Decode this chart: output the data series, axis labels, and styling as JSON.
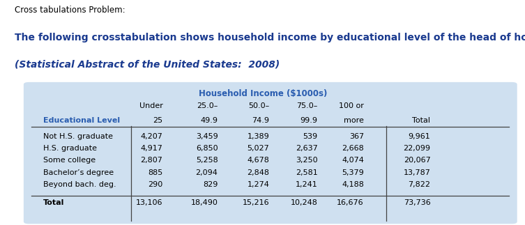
{
  "title_line1": "Cross tabulations Problem:",
  "desc_line1": "The following crosstabulation shows household income by educational level of the head of household",
  "desc_line2": "(Statistical Abstract of the United States:  2008)",
  "table_title": "Household Income ($1000s)",
  "col_headers_line1": [
    "",
    "Under",
    "25.0–",
    "50.0–",
    "75.0–",
    "100 or",
    ""
  ],
  "col_headers_line2": [
    "Educational Level",
    "25",
    "49.9",
    "74.9",
    "99.9",
    "more",
    "Total"
  ],
  "rows": [
    [
      "Not H.S. graduate",
      "4,207",
      "3,459",
      "1,389",
      "539",
      "367",
      "9,961"
    ],
    [
      "H.S. graduate",
      "4,917",
      "6,850",
      "5,027",
      "2,637",
      "2,668",
      "22,099"
    ],
    [
      "Some college",
      "2,807",
      "5,258",
      "4,678",
      "3,250",
      "4,074",
      "20,067"
    ],
    [
      "Bachelor’s degree",
      "885",
      "2,094",
      "2,848",
      "2,581",
      "5,379",
      "13,787"
    ],
    [
      "Beyond bach. deg.",
      "290",
      "829",
      "1,274",
      "1,241",
      "4,188",
      "7,822"
    ]
  ],
  "total_row": [
    "Total",
    "13,106",
    "18,490",
    "15,216",
    "10,248",
    "16,676",
    "73,736"
  ],
  "header_color": "#2a5db0",
  "title_text_color": "#1a3a8f",
  "table_bg": "#cfe0f0",
  "font_size": 8.0,
  "title_font_size": 8.5,
  "desc_font_size": 10.0
}
